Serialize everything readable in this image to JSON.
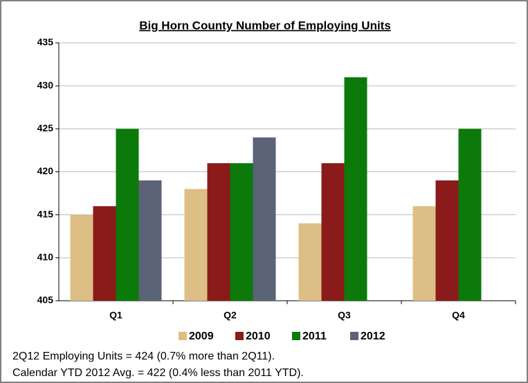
{
  "chart_data": {
    "type": "bar",
    "title": "Big Horn County Number of Employing Units",
    "categories": [
      "Q1",
      "Q2",
      "Q3",
      "Q4"
    ],
    "series": [
      {
        "name": "2009",
        "color": "#ddbf86",
        "values": [
          415,
          418,
          414,
          416
        ]
      },
      {
        "name": "2010",
        "color": "#8b1a1a",
        "values": [
          416,
          421,
          421,
          419
        ]
      },
      {
        "name": "2011",
        "color": "#0b7a0b",
        "values": [
          425,
          421,
          431,
          425
        ]
      },
      {
        "name": "2012",
        "color": "#5b6377",
        "values": [
          419,
          424,
          null,
          null
        ]
      }
    ],
    "ylim": [
      405,
      435
    ],
    "yticks": [
      405,
      410,
      415,
      420,
      425,
      430,
      435
    ],
    "grid": true,
    "legend": "bottom",
    "annotations": [
      "2Q12 Employing Units = 424 (0.7% more than 2Q11).",
      "Calendar YTD 2012 Avg. = 422 (0.4% less than 2011 YTD)."
    ]
  }
}
